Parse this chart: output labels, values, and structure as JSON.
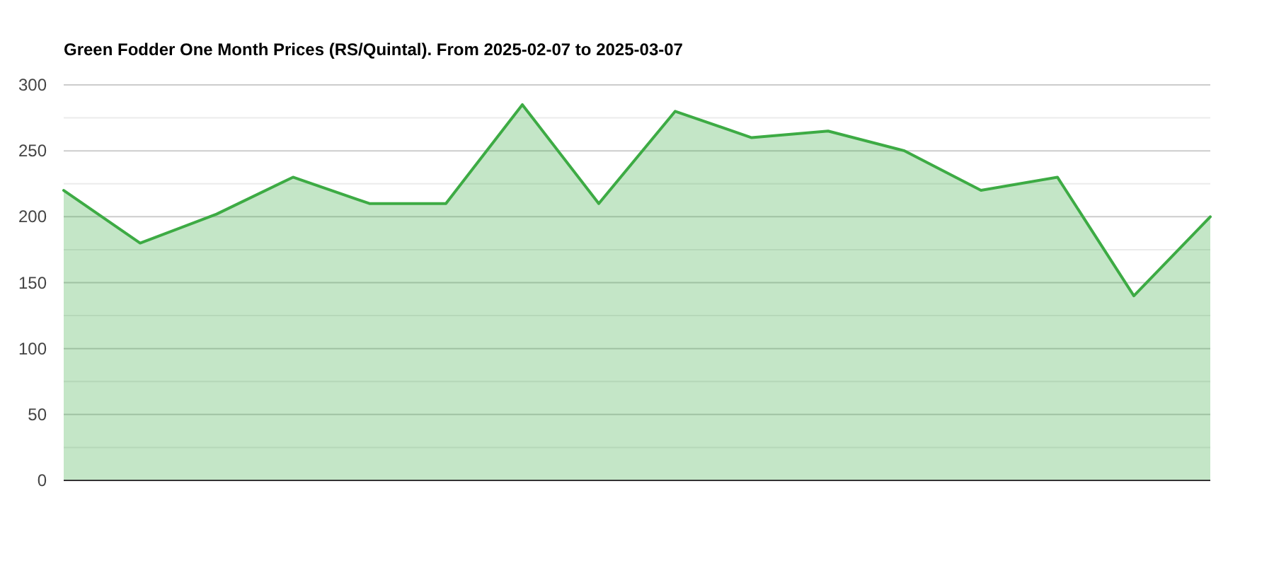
{
  "chart_data": {
    "type": "area",
    "title": "Green Fodder One Month Prices (RS/Quintal). From 2025-02-07 to 2025-03-07",
    "categories": [
      null,
      null,
      null,
      null,
      null,
      null,
      null,
      null,
      null,
      null,
      null,
      null,
      null,
      null,
      null,
      null
    ],
    "values": [
      220,
      180,
      202,
      230,
      210,
      210,
      285,
      210,
      280,
      260,
      265,
      250,
      220,
      230,
      140,
      200
    ],
    "color": "#3dab44",
    "ylim": [
      0,
      300
    ],
    "yticks": [
      0,
      {
        "value": 25,
        "label": null
      },
      50,
      {
        "value": 75,
        "label": null
      },
      100,
      {
        "value": 125,
        "label": null
      },
      150,
      {
        "value": 175,
        "label": null
      },
      200,
      {
        "value": 225,
        "label": null
      },
      250,
      {
        "value": 275,
        "label": null
      },
      300
    ],
    "grid": true
  }
}
